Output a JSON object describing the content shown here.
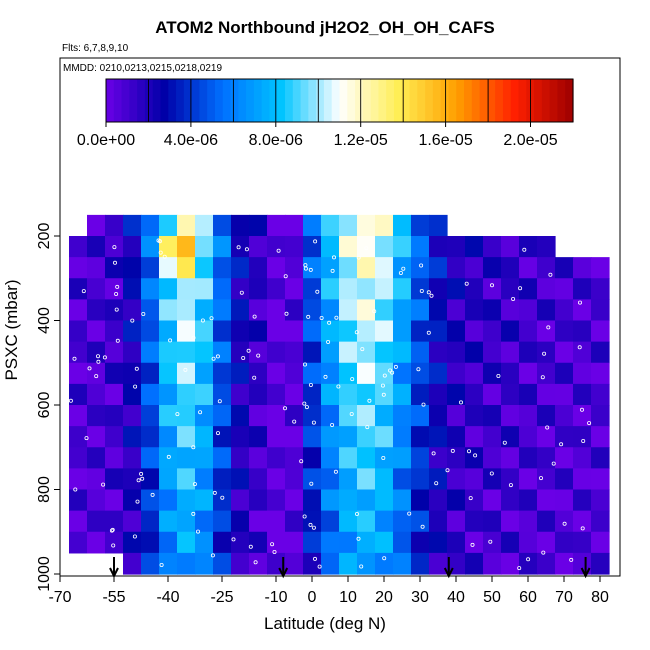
{
  "chart_data": {
    "type": "heatmap",
    "title": "ATOM2 Northbound jH2O2_OH_OH_CAFS",
    "flights_note": "Flts: 6,7,8,9,10",
    "dates_note": "MMDD: 0210,0213,0215,0218,0219",
    "xlabel": "Latitude (deg N)",
    "ylabel": "PSXC (mbar)",
    "xlim": [
      -70,
      85
    ],
    "ylim": [
      1000,
      150
    ],
    "x_ticks": [
      -70,
      -55,
      -40,
      -25,
      -10,
      0,
      10,
      20,
      30,
      40,
      50,
      60,
      70,
      80
    ],
    "x_tick_labels": [
      "-70",
      "-55",
      "-40",
      "-25",
      "-10",
      "0",
      "10",
      "20",
      "30",
      "40",
      "50",
      "60",
      "70",
      "80"
    ],
    "y_ticks": [
      200,
      400,
      600,
      800,
      1000
    ],
    "y_tick_labels": [
      "200",
      "400",
      "600",
      "800",
      "1000"
    ],
    "colorbar": {
      "min": 0,
      "max": 2.2e-05,
      "tick_values": [
        0,
        4e-06,
        8e-06,
        1.2e-05,
        1.6e-05,
        2e-05
      ],
      "tick_labels": [
        "0.0e+00",
        "4.0e-06",
        "8.0e-06",
        "1.2e-05",
        "1.6e-05",
        "2.0e-05"
      ],
      "colors": [
        "#6a00e6",
        "#0000a8",
        "#0070ff",
        "#00c4ff",
        "#ffffff",
        "#ffee55",
        "#ffa000",
        "#ff2000",
        "#9e0000"
      ]
    },
    "lat_grid": [
      -65,
      -60,
      -55,
      -50,
      -45,
      -40,
      -35,
      -30,
      -25,
      -20,
      -15,
      -10,
      -5,
      0,
      5,
      10,
      15,
      20,
      25,
      30,
      35,
      40,
      45,
      50,
      55,
      60,
      65,
      70,
      75,
      80
    ],
    "pressure_grid": [
      175,
      225,
      275,
      325,
      375,
      425,
      475,
      525,
      575,
      625,
      675,
      725,
      775,
      825,
      875,
      925,
      975
    ],
    "profile_latitudes": [
      -55,
      -8,
      38,
      76
    ],
    "grid": false,
    "legend": "colorbar-top"
  }
}
